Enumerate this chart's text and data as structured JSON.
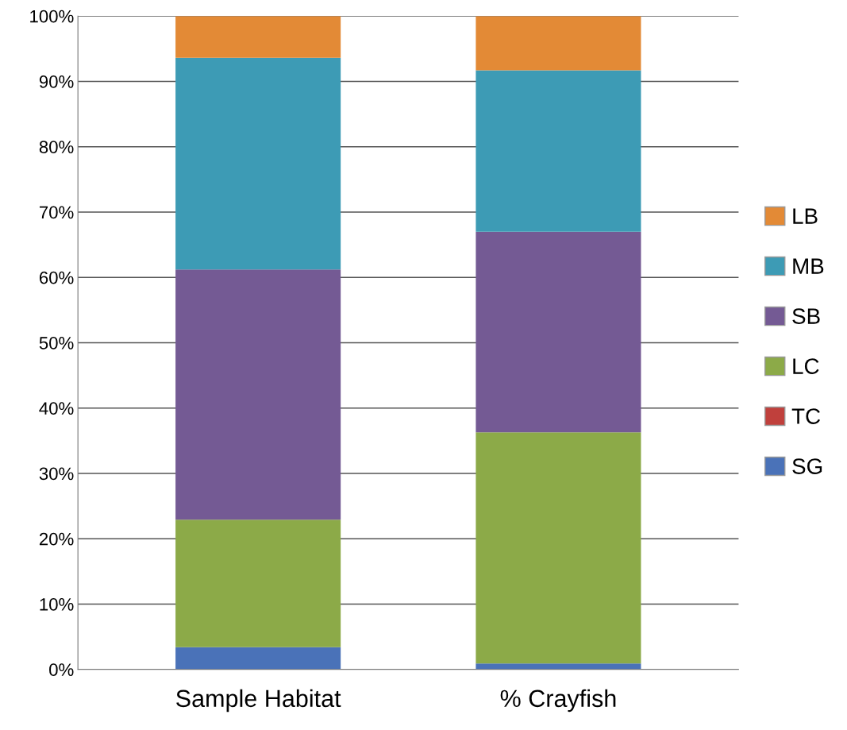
{
  "chart_data": {
    "type": "bar",
    "stacked": true,
    "categories": [
      "Sample Habitat",
      "% Crayfish"
    ],
    "series": [
      {
        "name": "SG",
        "color": "#4a72b8",
        "values": [
          3.4,
          0.9
        ]
      },
      {
        "name": "TC",
        "color": "#c0403c",
        "values": [
          0,
          0
        ]
      },
      {
        "name": "LC",
        "color": "#8caa48",
        "values": [
          19.5,
          35.4
        ]
      },
      {
        "name": "SB",
        "color": "#745a94",
        "values": [
          38.3,
          30.7
        ]
      },
      {
        "name": "MB",
        "color": "#3d9bb5",
        "values": [
          32.4,
          24.7
        ]
      },
      {
        "name": "LB",
        "color": "#e38a36",
        "values": [
          6.4,
          8.3
        ]
      }
    ],
    "ylim": [
      0,
      100
    ],
    "yticks": [
      {
        "value": 0,
        "label": "0%"
      },
      {
        "value": 10,
        "label": "10%"
      },
      {
        "value": 20,
        "label": "20%"
      },
      {
        "value": 30,
        "label": "30%"
      },
      {
        "value": 40,
        "label": "40%"
      },
      {
        "value": 50,
        "label": "50%"
      },
      {
        "value": 60,
        "label": "60%"
      },
      {
        "value": 70,
        "label": "70%"
      },
      {
        "value": 80,
        "label": "80%"
      },
      {
        "value": 90,
        "label": "90%"
      },
      {
        "value": 100,
        "label": "100%"
      }
    ],
    "grid": "y",
    "legend": "right"
  }
}
